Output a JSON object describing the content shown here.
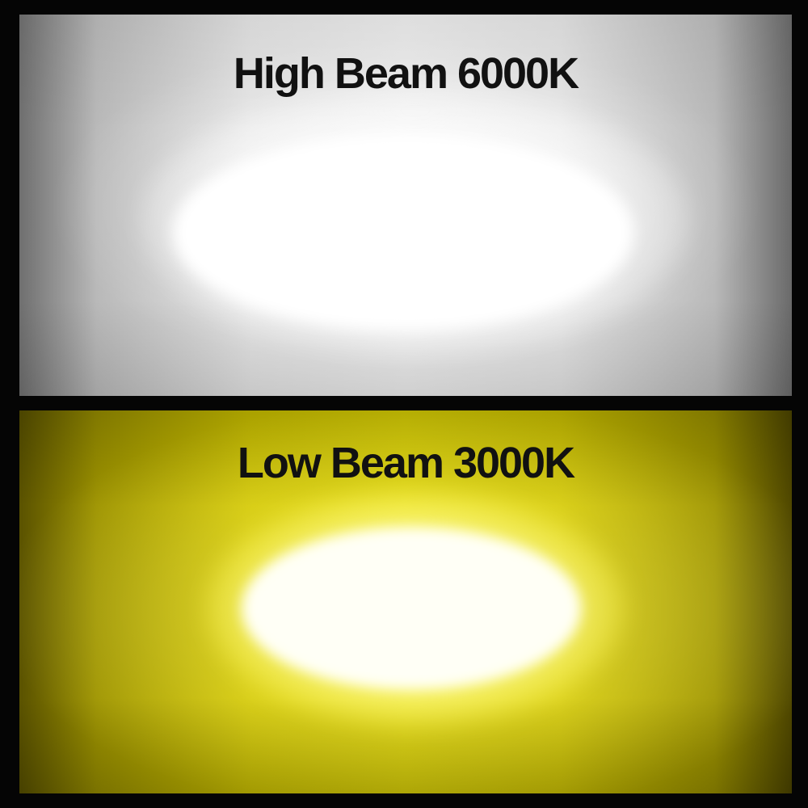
{
  "high_beam": {
    "caption": "High Beam 6000K",
    "color_tone": "#f2f2f2"
  },
  "low_beam": {
    "caption": "Low Beam 3000K",
    "color_tone": "#d8ce00"
  },
  "colors": {
    "frame": "#050505",
    "text": "#111111"
  }
}
